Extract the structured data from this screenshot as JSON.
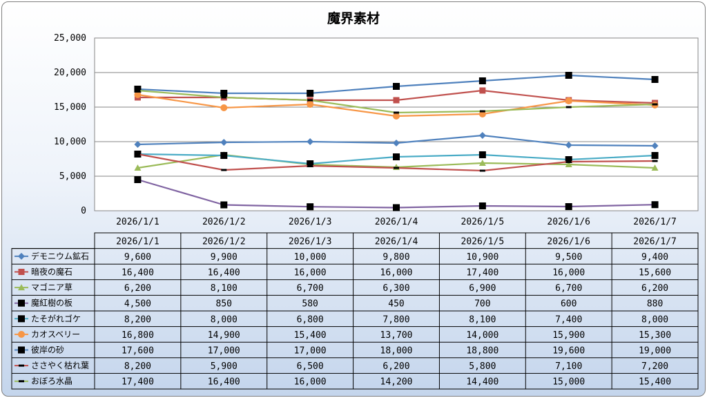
{
  "chart_data": {
    "type": "line",
    "title": "魔界素材",
    "categories": [
      "2026/1/1",
      "2026/1/2",
      "2026/1/3",
      "2026/1/4",
      "2026/1/5",
      "2026/1/6",
      "2026/1/7"
    ],
    "ylim": [
      0,
      25000
    ],
    "yticks": [
      "0",
      "5,000",
      "10,000",
      "15,000",
      "20,000",
      "25,000"
    ],
    "grid": true,
    "legend": "data-table",
    "series": [
      {
        "name": "デモニウム鉱石",
        "color": "#4f81bd",
        "marker": "diamond",
        "values": [
          9600,
          9900,
          10000,
          9800,
          10900,
          9500,
          9400
        ],
        "labels": [
          "9,600",
          "9,900",
          "10,000",
          "9,800",
          "10,900",
          "9,500",
          "9,400"
        ]
      },
      {
        "name": "暗夜の魔石",
        "color": "#c0504d",
        "marker": "square",
        "values": [
          16400,
          16400,
          16000,
          16000,
          17400,
          16000,
          15600
        ],
        "labels": [
          "16,400",
          "16,400",
          "16,000",
          "16,000",
          "17,400",
          "16,000",
          "15,600"
        ]
      },
      {
        "name": "マゴニア草",
        "color": "#9bbb59",
        "marker": "triangle",
        "values": [
          6200,
          8100,
          6700,
          6300,
          6900,
          6700,
          6200
        ],
        "labels": [
          "6,200",
          "8,100",
          "6,700",
          "6,300",
          "6,900",
          "6,700",
          "6,200"
        ]
      },
      {
        "name": "魔紅樹の板",
        "color": "#8064a2",
        "marker": "square-black",
        "values": [
          4500,
          850,
          580,
          450,
          700,
          600,
          880
        ],
        "labels": [
          "4,500",
          "850",
          "580",
          "450",
          "700",
          "600",
          "880"
        ]
      },
      {
        "name": "たそがれゴケ",
        "color": "#4bacc6",
        "marker": "square-black",
        "values": [
          8200,
          8000,
          6800,
          7800,
          8100,
          7400,
          8000
        ],
        "labels": [
          "8,200",
          "8,000",
          "6,800",
          "7,800",
          "8,100",
          "7,400",
          "8,000"
        ]
      },
      {
        "name": "カオスベリー",
        "color": "#f79646",
        "marker": "circle",
        "values": [
          16800,
          14900,
          15400,
          13700,
          14000,
          15900,
          15300
        ],
        "labels": [
          "16,800",
          "14,900",
          "15,400",
          "13,700",
          "14,000",
          "15,900",
          "15,300"
        ]
      },
      {
        "name": "彼岸の砂",
        "color": "#4f81bd",
        "marker": "square-black",
        "values": [
          17600,
          17000,
          17000,
          18000,
          18800,
          19600,
          19000
        ],
        "labels": [
          "17,600",
          "17,000",
          "17,000",
          "18,000",
          "18,800",
          "19,600",
          "19,000"
        ]
      },
      {
        "name": "ささやく枯れ葉",
        "color": "#c0504d",
        "marker": "dash-black",
        "values": [
          8200,
          5900,
          6500,
          6200,
          5800,
          7100,
          7200
        ],
        "labels": [
          "8,200",
          "5,900",
          "6,500",
          "6,200",
          "5,800",
          "7,100",
          "7,200"
        ]
      },
      {
        "name": "おぼろ水晶",
        "color": "#9bbb59",
        "marker": "dash-black",
        "values": [
          17400,
          16400,
          16000,
          14200,
          14400,
          15000,
          15400
        ],
        "labels": [
          "17,400",
          "16,400",
          "16,000",
          "14,200",
          "14,400",
          "15,000",
          "15,400"
        ]
      }
    ]
  }
}
